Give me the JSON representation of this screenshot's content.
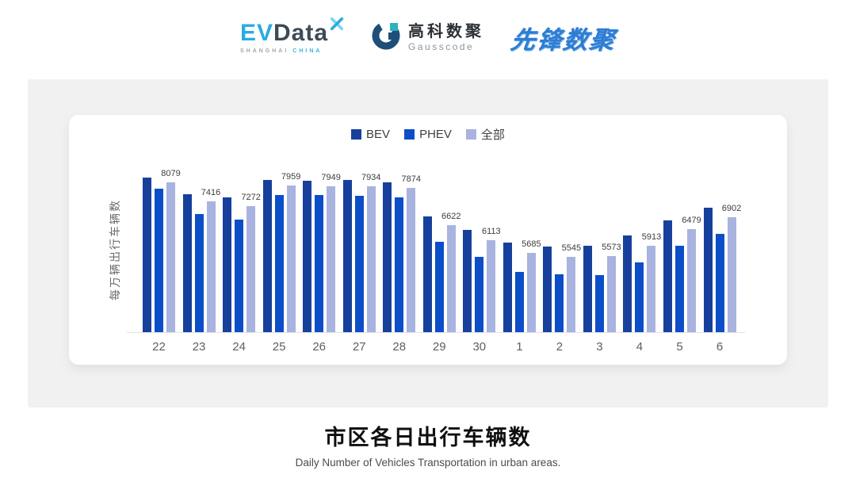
{
  "header": {
    "evdata": {
      "part1": "EV",
      "part2": "Data",
      "sub1": "SHANGHAI",
      "sub2": "CHINA"
    },
    "gausscode": {
      "name_cn": "高科数聚",
      "name_en": "Gausscode"
    },
    "xianfeng": {
      "name": "先锋数聚"
    }
  },
  "chart_data": {
    "type": "bar",
    "title": "市区各日出行车辆数",
    "subtitle": "Daily Number of Vehicles Transportation in urban areas.",
    "ylabel": "每万辆出行车辆数",
    "xlabel": "",
    "categories": [
      "22",
      "23",
      "24",
      "25",
      "26",
      "27",
      "28",
      "29",
      "30",
      "1",
      "2",
      "3",
      "4",
      "5",
      "6"
    ],
    "series": [
      {
        "name": "BEV",
        "color": "#16409c",
        "values": [
          8240,
          7670,
          7560,
          8140,
          8130,
          8150,
          8070,
          6920,
          6470,
          6040,
          5900,
          5930,
          6270,
          6780,
          7210
        ]
      },
      {
        "name": "PHEV",
        "color": "#0b4ec7",
        "values": [
          7860,
          7010,
          6800,
          7630,
          7640,
          7610,
          7560,
          6070,
          5540,
          5030,
          4950,
          4930,
          5360,
          5920,
          6340
        ]
      },
      {
        "name": "全部",
        "color": "#a9b3e0",
        "show_labels": true,
        "values": [
          8079,
          7416,
          7272,
          7959,
          7949,
          7934,
          7874,
          6622,
          6113,
          5685,
          5545,
          5573,
          5913,
          6479,
          6902
        ]
      }
    ],
    "data_labels": [
      8079,
      7416,
      7272,
      7959,
      7949,
      7934,
      7874,
      6622,
      6113,
      5685,
      5545,
      5573,
      5913,
      6479,
      6902
    ],
    "ylim": [
      3000,
      8500
    ],
    "grid": false,
    "legend_position": "top-center",
    "colors": {
      "axis_line": "#e2e2e6",
      "tick_label": "#5f5f5f",
      "data_label": "#3d3d3d",
      "panel_background": "#f1f1f2",
      "card_background": "#ffffff"
    }
  },
  "footer": {
    "title": "市区各日出行车辆数",
    "subtitle": "Daily Number of Vehicles Transportation in urban areas."
  }
}
